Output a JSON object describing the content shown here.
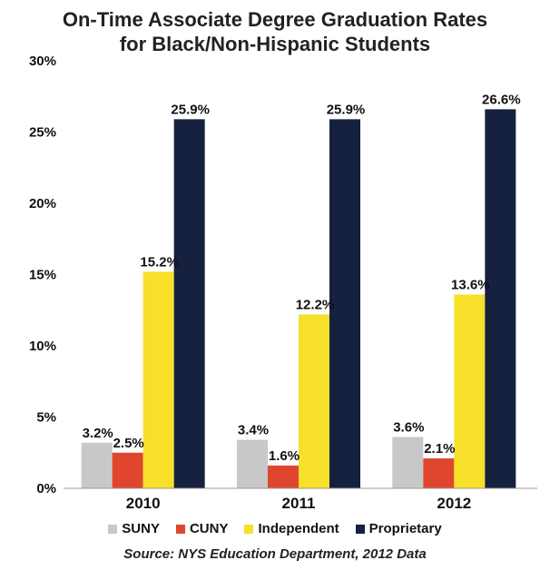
{
  "chart_data": {
    "type": "bar",
    "title": "On-Time Associate Degree Graduation Rates for Black/Non-Hispanic Students",
    "title_lines": [
      "On-Time Associate Degree Graduation Rates",
      "for Black/Non-Hispanic Students"
    ],
    "categories": [
      "2010",
      "2011",
      "2012"
    ],
    "series": [
      {
        "name": "SUNY",
        "color": "#c8c8c8",
        "values": [
          3.2,
          3.4,
          3.6
        ],
        "labels": [
          "3.2%",
          "3.4%",
          "3.6%"
        ]
      },
      {
        "name": "CUNY",
        "color": "#e0462d",
        "values": [
          2.5,
          1.6,
          2.1
        ],
        "labels": [
          "2.5%",
          "1.6%",
          "2.1%"
        ]
      },
      {
        "name": "Independent",
        "color": "#f6e02a",
        "values": [
          15.2,
          12.2,
          13.6
        ],
        "labels": [
          "15.2%",
          "12.2%",
          "13.6%"
        ]
      },
      {
        "name": "Proprietary",
        "color": "#16213f",
        "values": [
          25.9,
          25.9,
          26.6
        ],
        "labels": [
          "25.9%",
          "25.9%",
          "26.6%"
        ]
      }
    ],
    "ylim": [
      0,
      30
    ],
    "y_ticks": [
      "0%",
      "5%",
      "10%",
      "15%",
      "20%",
      "25%",
      "30%"
    ],
    "xlabel": "",
    "ylabel": "",
    "grid": false,
    "legend_position": "bottom",
    "source": "Source: NYS Education Department, 2012 Data"
  }
}
